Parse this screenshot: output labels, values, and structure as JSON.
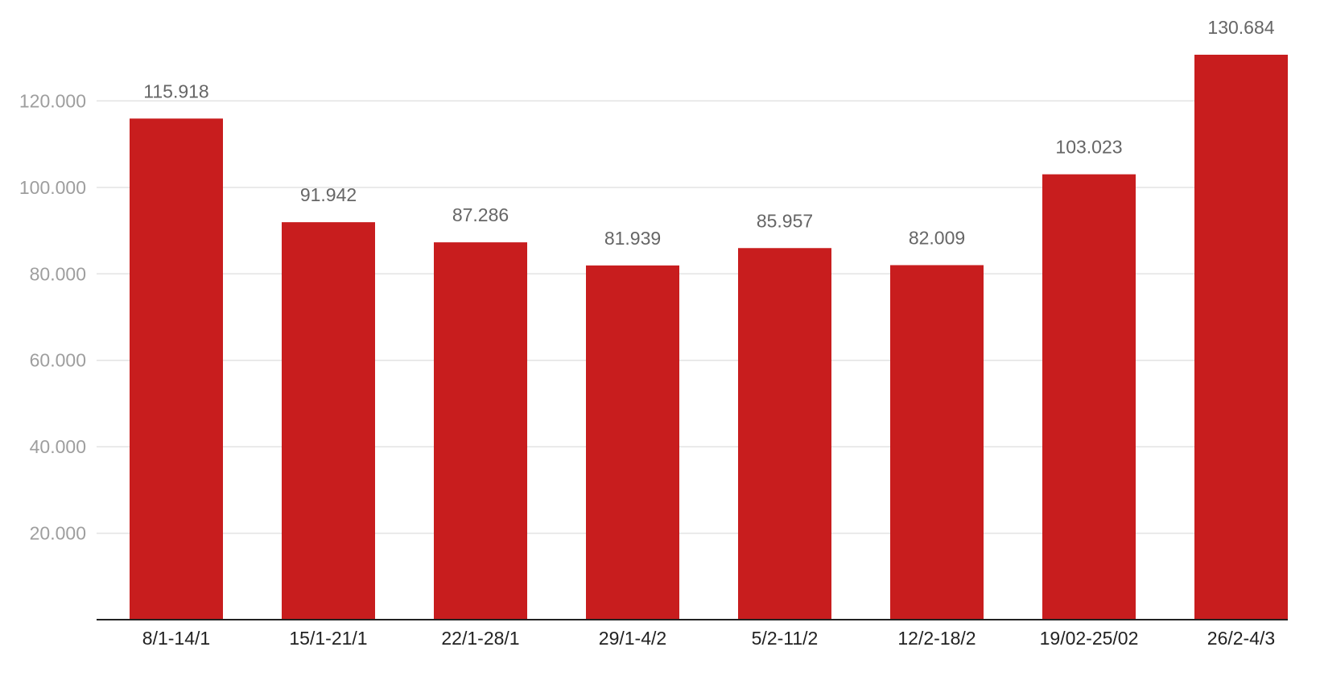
{
  "chart_data": {
    "type": "bar",
    "title": "",
    "xlabel": "",
    "ylabel": "",
    "categories": [
      "8/1-14/1",
      "15/1-21/1",
      "22/1-28/1",
      "29/1-4/2",
      "5/2-11/2",
      "12/2-18/2",
      "19/02-25/02",
      "26/2-4/3"
    ],
    "values": [
      115918,
      91942,
      87286,
      81939,
      85957,
      82009,
      103023,
      130684
    ],
    "data_labels": [
      "115.918",
      "91.942",
      "87.286",
      "81.939",
      "85.957",
      "82.009",
      "103.023",
      "130.684"
    ],
    "ylim": [
      0,
      130684
    ],
    "y_ticks": [
      20000,
      40000,
      60000,
      80000,
      100000,
      120000
    ],
    "y_tick_labels": [
      "20.000",
      "40.000",
      "60.000",
      "80.000",
      "100.000",
      "120.000"
    ],
    "grid": true,
    "legend": "none",
    "colors": {
      "bar": "#c81d1e",
      "gridline": "#e3e3e3",
      "baseline": "#222222",
      "y_tick_text": "#9e9e9e",
      "x_tick_text": "#222222",
      "data_label_text": "#666666"
    }
  }
}
